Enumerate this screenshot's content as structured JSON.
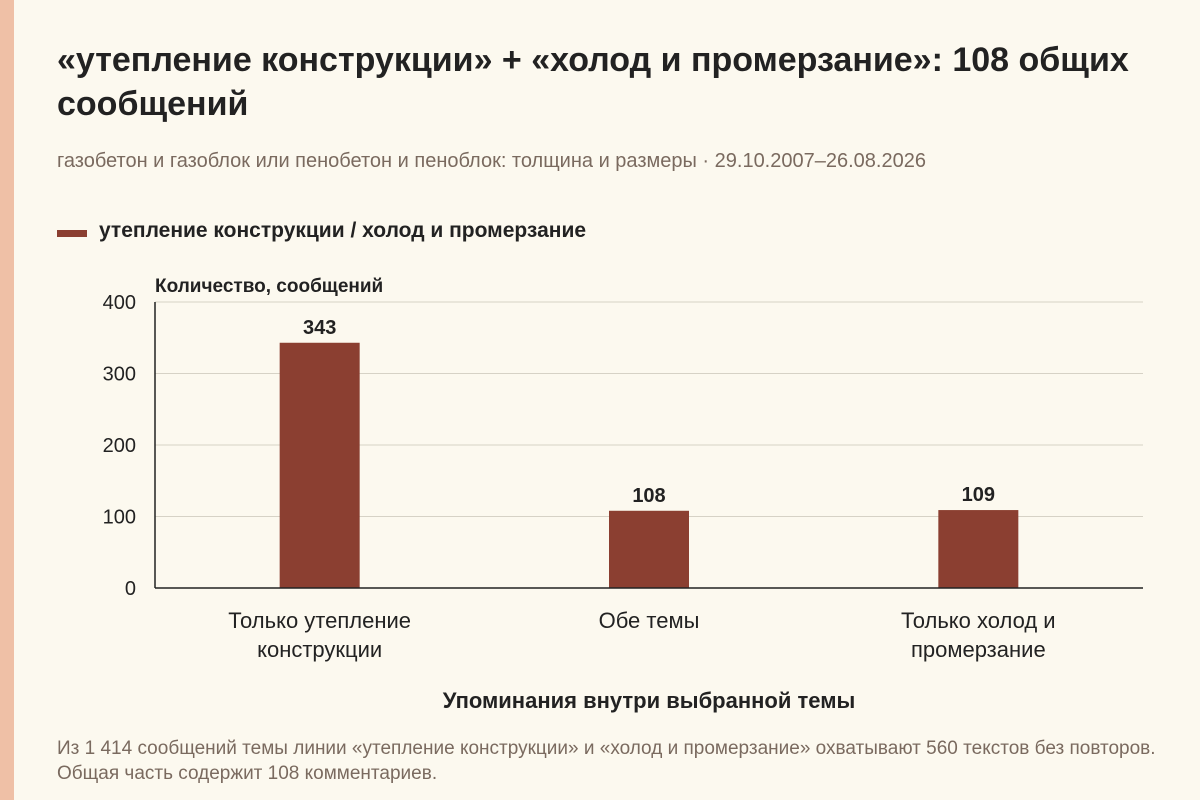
{
  "colors": {
    "accent_bar": "#efc0a6",
    "background": "#fcf9ef",
    "bar": "#8b3f31"
  },
  "header": {
    "title": "«утепление конструкции» + «холод и промерзание»: 108 общих сообщений",
    "subtitle": "газобетон и газоблок или пенобетон и пеноблок: толщина и размеры · 29.10.2007–26.08.2026"
  },
  "footnote": "Из 1 414 сообщений темы линии «утепление конструкции» и «холод и промерзание» охватывают 560 текстов без повторов. Общая часть содержит 108 комментариев.",
  "chart_data": {
    "type": "bar",
    "categories": [
      [
        "Только утепление",
        "конструкции"
      ],
      [
        "Обе темы"
      ],
      [
        "Только холод и",
        "промерзание"
      ]
    ],
    "series": [
      {
        "name": "утепление конструкции / холод и промерзание",
        "values": [
          343,
          108,
          109
        ]
      }
    ],
    "ylabel": "Количество, сообщений",
    "xlabel": "Упоминания внутри выбранной темы",
    "ylim": [
      0,
      400
    ],
    "yticks": [
      0,
      100,
      200,
      300,
      400
    ],
    "grid": true,
    "data_labels": true,
    "legend_position": "top-left"
  }
}
